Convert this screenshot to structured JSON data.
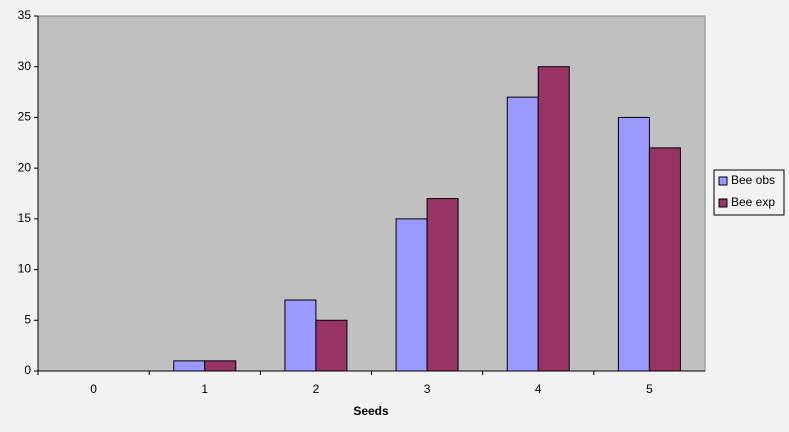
{
  "chart_data": {
    "type": "bar",
    "x_label": "Seeds",
    "categories": [
      "0",
      "1",
      "2",
      "3",
      "4",
      "5"
    ],
    "series": [
      {
        "name": "Bee obs",
        "color": "#9999ff",
        "values": [
          0,
          1,
          7,
          15,
          27,
          25
        ]
      },
      {
        "name": "Bee exp",
        "color": "#993366",
        "values": [
          0,
          1,
          5,
          17,
          30,
          22
        ]
      }
    ],
    "ylim": [
      0,
      35
    ],
    "yticks": [
      0,
      5,
      10,
      15,
      20,
      25,
      30,
      35
    ],
    "grid": false,
    "legend": "right",
    "plot_color": "#c0c0c0"
  }
}
